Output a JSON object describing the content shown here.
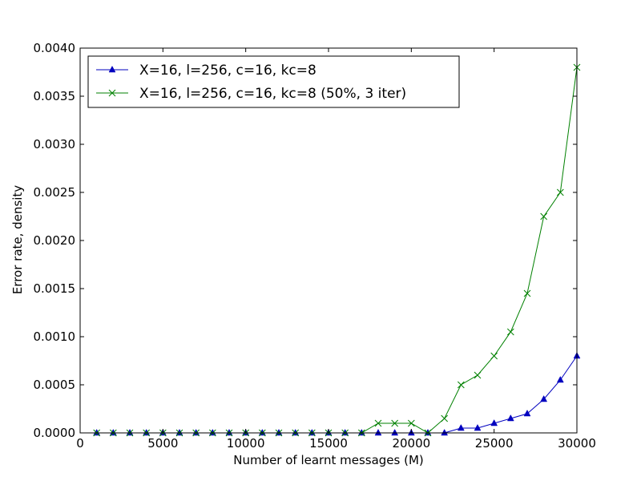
{
  "chart_data": {
    "type": "line",
    "title": "",
    "xlabel": "Number of learnt messages (M)",
    "ylabel": "Error rate, density",
    "xlim": [
      0,
      30000
    ],
    "ylim": [
      0,
      0.004
    ],
    "x_ticks": [
      0,
      5000,
      10000,
      15000,
      20000,
      25000,
      30000
    ],
    "x_tick_labels": [
      "0",
      "5000",
      "10000",
      "15000",
      "20000",
      "25000",
      "30000"
    ],
    "y_ticks": [
      0,
      0.0005,
      0.001,
      0.0015,
      0.002,
      0.0025,
      0.003,
      0.0035,
      0.004
    ],
    "y_tick_labels": [
      "0.0000",
      "0.0005",
      "0.0010",
      "0.0015",
      "0.0020",
      "0.0025",
      "0.0030",
      "0.0035",
      "0.0040"
    ],
    "grid": false,
    "legend_position": "top-left",
    "x": [
      1000,
      2000,
      3000,
      4000,
      5000,
      6000,
      7000,
      8000,
      9000,
      10000,
      11000,
      12000,
      13000,
      14000,
      15000,
      16000,
      17000,
      18000,
      19000,
      20000,
      21000,
      22000,
      23000,
      24000,
      25000,
      26000,
      27000,
      28000,
      29000,
      30000
    ],
    "series": [
      {
        "name": "X=16, l=256, c=16, kc=8",
        "color": "#0000bf",
        "marker": "triangle",
        "values": [
          0,
          0,
          0,
          0,
          0,
          0,
          0,
          0,
          0,
          0,
          0,
          0,
          0,
          0,
          0,
          0,
          0,
          0,
          0,
          0,
          0,
          0,
          5e-05,
          5e-05,
          0.0001,
          0.00015,
          0.0002,
          0.00035,
          0.00055,
          0.0008
        ]
      },
      {
        "name": "X=16, l=256, c=16, kc=8 (50%, 3 iter)",
        "color": "#008000",
        "marker": "x",
        "values": [
          0,
          0,
          0,
          0,
          0,
          0,
          0,
          0,
          0,
          0,
          0,
          0,
          0,
          0,
          0,
          0,
          0,
          0.0001,
          0.0001,
          0.0001,
          0,
          0.00015,
          0.0005,
          0.0006,
          0.0008,
          0.00105,
          0.00145,
          0.00225,
          0.0025,
          0.0038
        ]
      }
    ]
  }
}
